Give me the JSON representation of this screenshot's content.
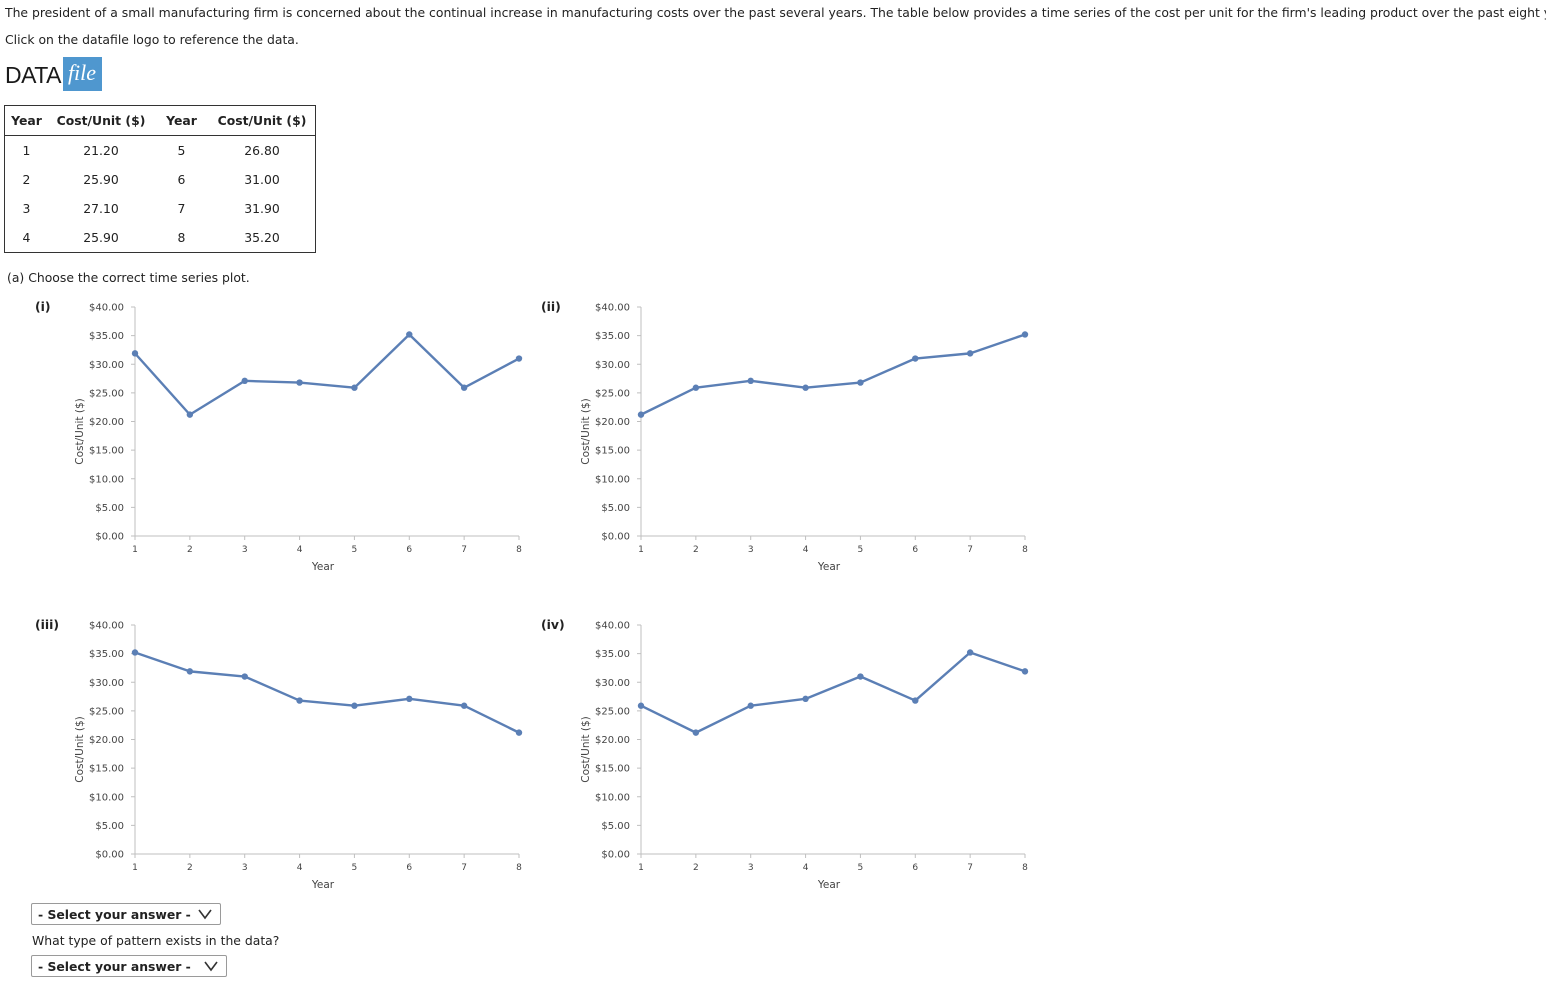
{
  "intro": "The president of a small manufacturing firm is concerned about the continual increase in manufacturing costs over the past several years. The table below provides a time series of the cost per unit for the firm's leading product over the past eight years.",
  "hint": "Click on the datafile logo to reference the data.",
  "datafile": {
    "data_text": "DATA",
    "file_text": "file"
  },
  "table": {
    "headers": [
      "Year",
      "Cost/Unit ($)",
      "Year",
      "Cost/Unit ($)"
    ],
    "rows": [
      [
        "1",
        "21.20",
        "5",
        "26.80"
      ],
      [
        "2",
        "25.90",
        "6",
        "31.00"
      ],
      [
        "3",
        "27.10",
        "7",
        "31.90"
      ],
      [
        "4",
        "25.90",
        "8",
        "35.20"
      ]
    ]
  },
  "part_a": "(a) Choose the correct time series plot.",
  "colors": {
    "line": "#5b7fb5",
    "axis": "#bfbfbf",
    "datafile_blue": "#4f97cf"
  },
  "chart_data": [
    {
      "type": "line",
      "label": "(i)",
      "xlabel": "Year",
      "ylabel": "Cost/Unit ($)",
      "x": [
        1,
        2,
        3,
        4,
        5,
        6,
        7,
        8
      ],
      "y_ticks": [
        "$0.00",
        "$5.00",
        "$10.00",
        "$15.00",
        "$20.00",
        "$25.00",
        "$30.00",
        "$35.00",
        "$40.00"
      ],
      "ylim": [
        0,
        40
      ],
      "series": [
        {
          "values": [
            31.9,
            21.2,
            27.1,
            26.8,
            25.9,
            35.2,
            25.9,
            31.0
          ]
        }
      ]
    },
    {
      "type": "line",
      "label": "(ii)",
      "xlabel": "Year",
      "ylabel": "Cost/Unit ($)",
      "x": [
        1,
        2,
        3,
        4,
        5,
        6,
        7,
        8
      ],
      "y_ticks": [
        "$0.00",
        "$5.00",
        "$10.00",
        "$15.00",
        "$20.00",
        "$25.00",
        "$30.00",
        "$35.00",
        "$40.00"
      ],
      "ylim": [
        0,
        40
      ],
      "series": [
        {
          "values": [
            21.2,
            25.9,
            27.1,
            25.9,
            26.8,
            31.0,
            31.9,
            35.2
          ]
        }
      ]
    },
    {
      "type": "line",
      "label": "(iii)",
      "xlabel": "Year",
      "ylabel": "Cost/Unit ($)",
      "x": [
        1,
        2,
        3,
        4,
        5,
        6,
        7,
        8
      ],
      "y_ticks": [
        "$0.00",
        "$5.00",
        "$10.00",
        "$15.00",
        "$20.00",
        "$25.00",
        "$30.00",
        "$35.00",
        "$40.00"
      ],
      "ylim": [
        0,
        40
      ],
      "series": [
        {
          "values": [
            35.2,
            31.9,
            31.0,
            26.8,
            25.9,
            27.1,
            25.9,
            21.2
          ]
        }
      ]
    },
    {
      "type": "line",
      "label": "(iv)",
      "xlabel": "Year",
      "ylabel": "Cost/Unit ($)",
      "x": [
        1,
        2,
        3,
        4,
        5,
        6,
        7,
        8
      ],
      "y_ticks": [
        "$0.00",
        "$5.00",
        "$10.00",
        "$15.00",
        "$20.00",
        "$25.00",
        "$30.00",
        "$35.00",
        "$40.00"
      ],
      "ylim": [
        0,
        40
      ],
      "series": [
        {
          "values": [
            25.9,
            21.2,
            25.9,
            27.1,
            31.0,
            26.8,
            35.2,
            31.9
          ]
        }
      ]
    }
  ],
  "select1": {
    "value": "- Select your answer -",
    "icon": "chevron-down-icon"
  },
  "question": "What type of pattern exists in the data?",
  "select2": {
    "value": "- Select your answer -",
    "icon": "chevron-down-icon"
  }
}
